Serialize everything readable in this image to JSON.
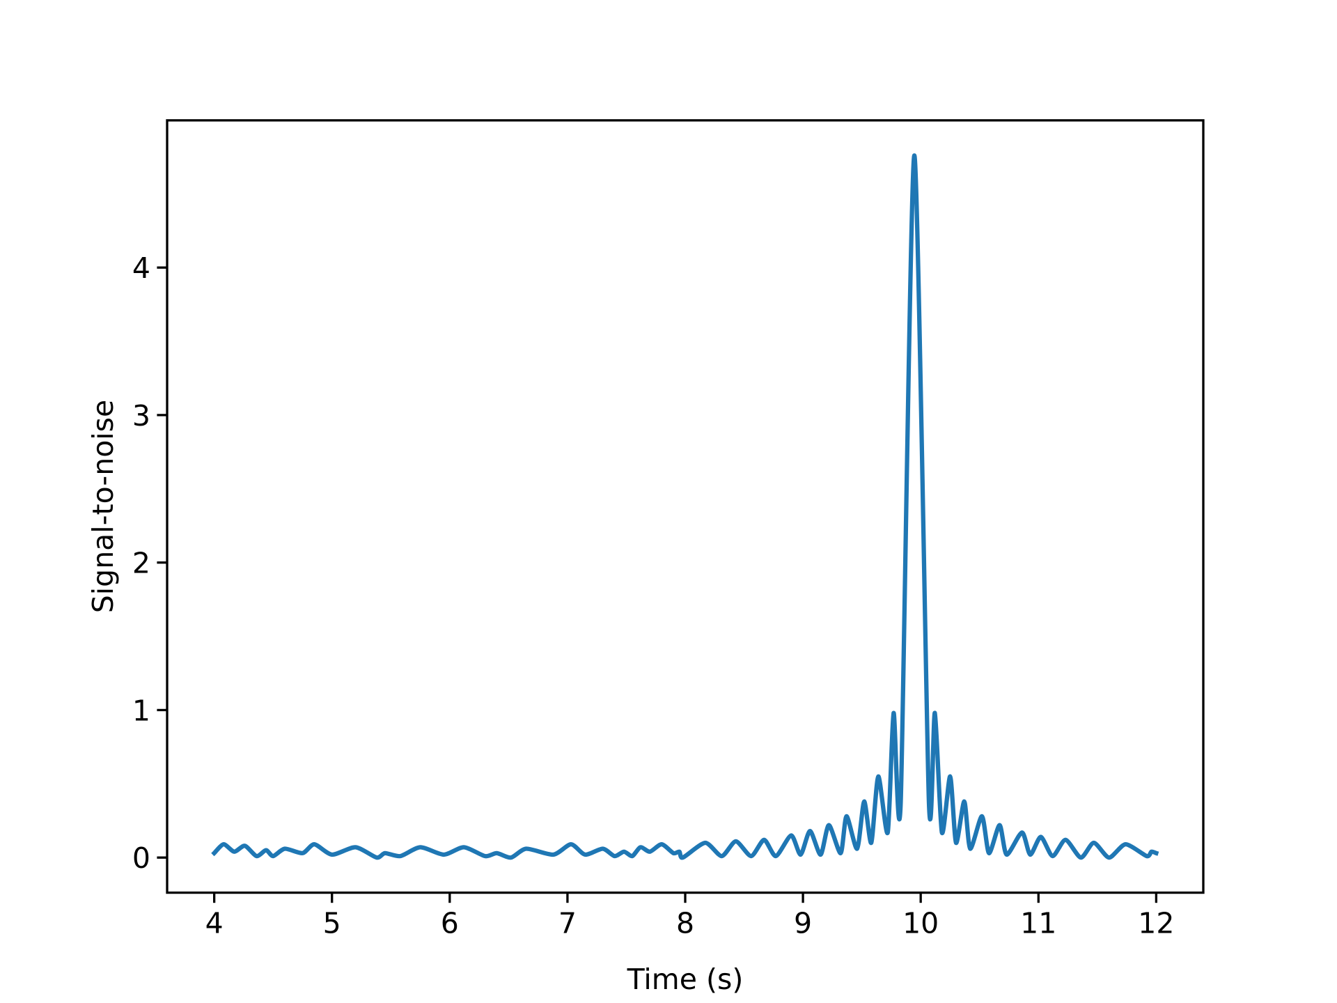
{
  "chart_data": {
    "type": "line",
    "xlabel": "Time (s)",
    "ylabel": "Signal-to-noise",
    "x": [
      4.0,
      4.08,
      4.17,
      4.26,
      4.36,
      4.44,
      4.5,
      4.6,
      4.75,
      4.85,
      5.0,
      5.2,
      5.38,
      5.45,
      5.58,
      5.75,
      5.95,
      6.12,
      6.3,
      6.4,
      6.52,
      6.65,
      6.88,
      7.03,
      7.15,
      7.3,
      7.4,
      7.48,
      7.55,
      7.62,
      7.7,
      7.8,
      7.9,
      7.95,
      7.98,
      8.17,
      8.31,
      8.43,
      8.56,
      8.67,
      8.77,
      8.9,
      8.98,
      9.06,
      9.15,
      9.22,
      9.32,
      9.37,
      9.46,
      9.52,
      9.58,
      9.64,
      9.72,
      9.77,
      9.83,
      9.946,
      10.07,
      10.12,
      10.18,
      10.25,
      10.3,
      10.37,
      10.42,
      10.52,
      10.58,
      10.67,
      10.73,
      10.86,
      10.93,
      11.02,
      11.12,
      11.23,
      11.36,
      11.47,
      11.6,
      11.74,
      11.92,
      11.96,
      12.0
    ],
    "series": [
      {
        "name": "snr",
        "color": "#1f77b4",
        "values": [
          0.03,
          0.09,
          0.04,
          0.08,
          0.01,
          0.05,
          0.01,
          0.06,
          0.03,
          0.09,
          0.02,
          0.07,
          0.0,
          0.03,
          0.01,
          0.07,
          0.02,
          0.07,
          0.01,
          0.03,
          0.0,
          0.06,
          0.02,
          0.09,
          0.02,
          0.06,
          0.01,
          0.04,
          0.01,
          0.07,
          0.04,
          0.09,
          0.03,
          0.04,
          0.0,
          0.1,
          0.01,
          0.11,
          0.01,
          0.12,
          0.01,
          0.15,
          0.02,
          0.18,
          0.02,
          0.22,
          0.03,
          0.28,
          0.06,
          0.38,
          0.1,
          0.55,
          0.17,
          0.98,
          0.37,
          4.76,
          0.37,
          0.98,
          0.17,
          0.55,
          0.1,
          0.38,
          0.06,
          0.28,
          0.03,
          0.22,
          0.02,
          0.17,
          0.02,
          0.14,
          0.01,
          0.12,
          0.0,
          0.1,
          0.0,
          0.09,
          0.01,
          0.04,
          0.03
        ]
      }
    ],
    "xlim": [
      3.6,
      12.4
    ],
    "xticks": [
      4,
      5,
      6,
      7,
      8,
      9,
      10,
      11,
      12
    ],
    "ylim": [
      -0.238,
      4.998
    ],
    "yticks": [
      0,
      1,
      2,
      3,
      4
    ],
    "grid": false
  }
}
